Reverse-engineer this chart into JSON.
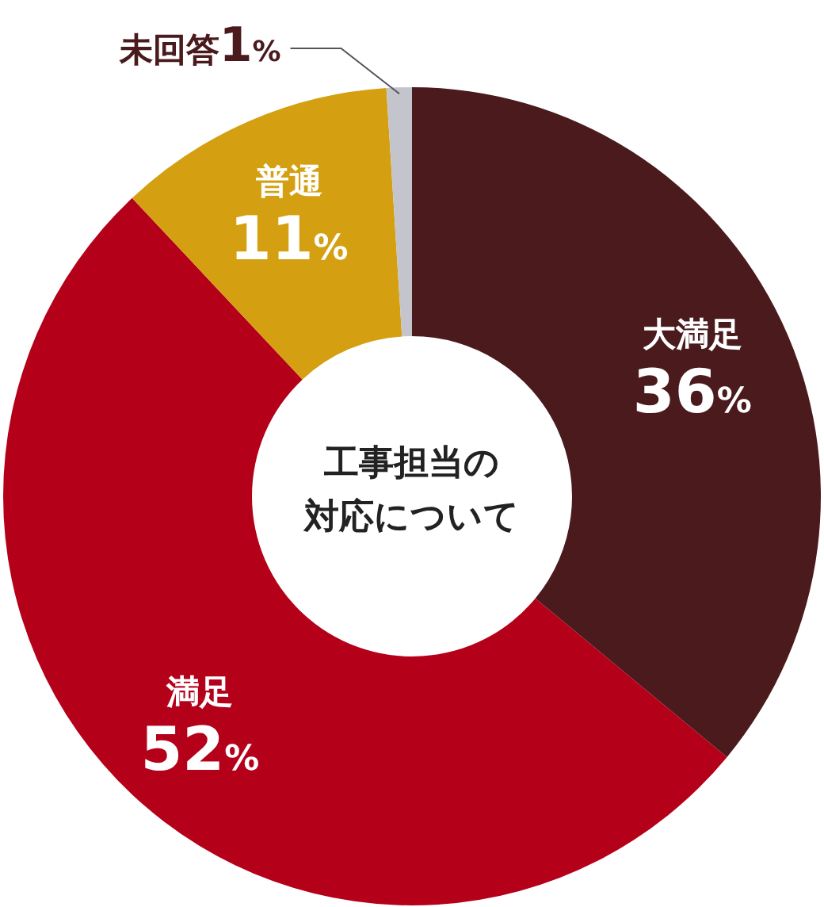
{
  "chart_data": {
    "type": "donut",
    "title": "工事担当の対応について",
    "categories": [
      "大満足",
      "満足",
      "普通",
      "未回答"
    ],
    "values": [
      36,
      52,
      11,
      1
    ],
    "value_labels": [
      "36%",
      "52%",
      "11%",
      "1%"
    ],
    "colors": [
      "#4a1a1d",
      "#b5001a",
      "#d4a011",
      "#c4c4cc"
    ]
  }
}
